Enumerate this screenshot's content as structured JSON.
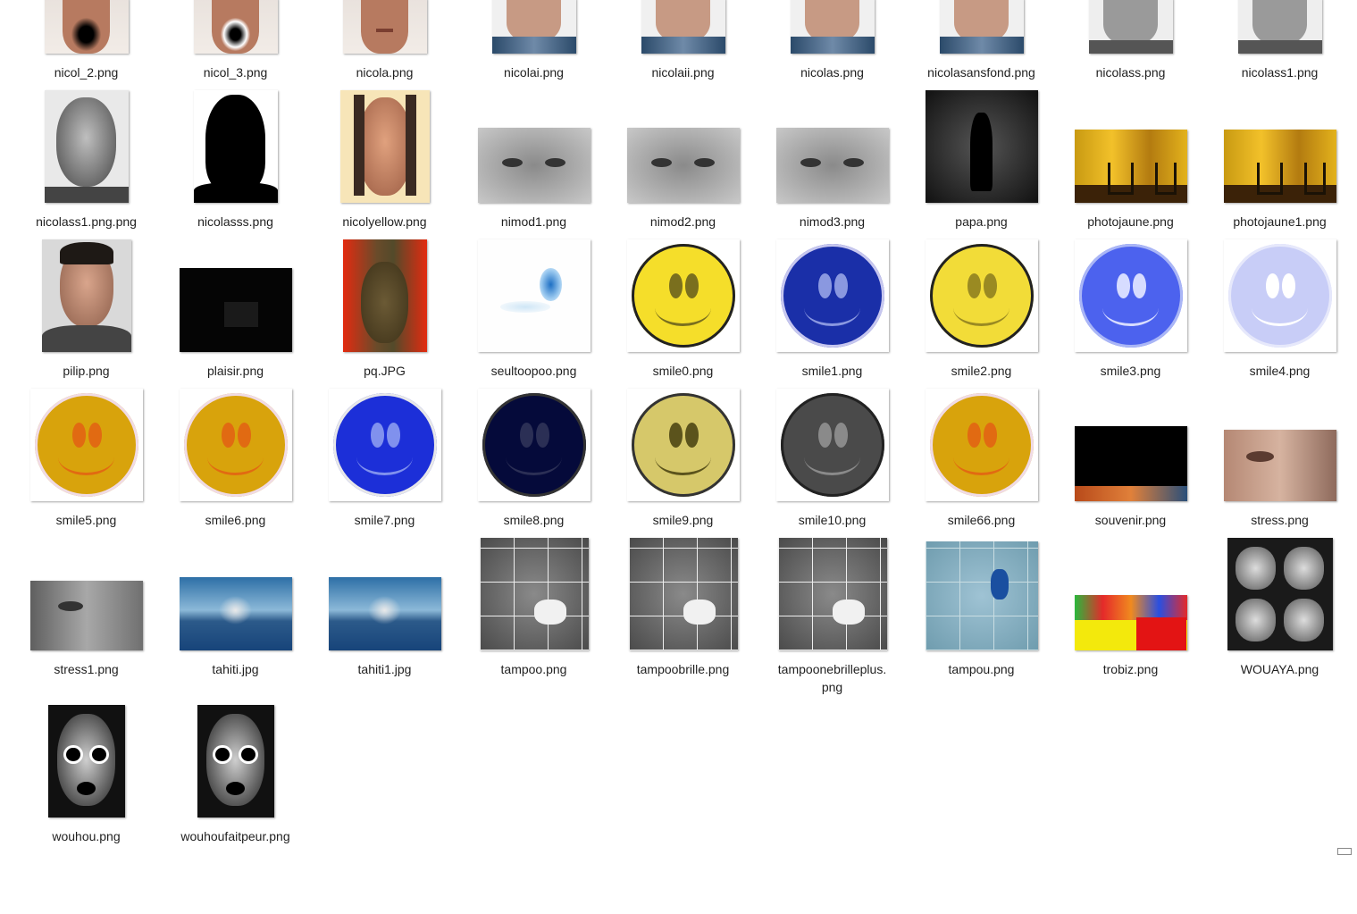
{
  "files": [
    {
      "name": "nicol_2.png",
      "kind": "face-mouth-black"
    },
    {
      "name": "nicol_3.png",
      "kind": "face-mouth-white"
    },
    {
      "name": "nicola.png",
      "kind": "face"
    },
    {
      "name": "nicolai.png",
      "kind": "face-man"
    },
    {
      "name": "nicolaii.png",
      "kind": "face-man"
    },
    {
      "name": "nicolas.png",
      "kind": "face-man"
    },
    {
      "name": "nicolasansfond.png",
      "kind": "face-man"
    },
    {
      "name": "nicolass.png",
      "kind": "face-gray"
    },
    {
      "name": "nicolass1.png",
      "kind": "face-gray"
    },
    {
      "name": "nicolass1.png.png",
      "kind": "portrait-gray"
    },
    {
      "name": "nicolasss.png",
      "kind": "silhouette"
    },
    {
      "name": "nicolyellow.png",
      "kind": "portrait-yellow"
    },
    {
      "name": "nimod1.png",
      "kind": "eyes-gray"
    },
    {
      "name": "nimod2.png",
      "kind": "eyes-gray"
    },
    {
      "name": "nimod3.png",
      "kind": "eyes-gray"
    },
    {
      "name": "papa.png",
      "kind": "dark-scene"
    },
    {
      "name": "photojaune.png",
      "kind": "yellow-room"
    },
    {
      "name": "photojaune1.png",
      "kind": "yellow-room"
    },
    {
      "name": "pilip.png",
      "kind": "portrait-man"
    },
    {
      "name": "plaisir.png",
      "kind": "black"
    },
    {
      "name": "pq.JPG",
      "kind": "psychedelic"
    },
    {
      "name": "seultoopoo.png",
      "kind": "blue-smudge"
    },
    {
      "name": "smile0.png",
      "kind": "smile-yellow"
    },
    {
      "name": "smile1.png",
      "kind": "smile-blue"
    },
    {
      "name": "smile2.png",
      "kind": "smile-yellow-inv"
    },
    {
      "name": "smile3.png",
      "kind": "smile-blue-light"
    },
    {
      "name": "smile4.png",
      "kind": "smile-pale"
    },
    {
      "name": "smile5.png",
      "kind": "smile-orange"
    },
    {
      "name": "smile6.png",
      "kind": "smile-orange"
    },
    {
      "name": "smile7.png",
      "kind": "smile-royal"
    },
    {
      "name": "smile8.png",
      "kind": "smile-navy"
    },
    {
      "name": "smile9.png",
      "kind": "smile-khaki"
    },
    {
      "name": "smile10.png",
      "kind": "smile-gray"
    },
    {
      "name": "smile66.png",
      "kind": "smile-orange"
    },
    {
      "name": "souvenir.png",
      "kind": "black-strip"
    },
    {
      "name": "stress.png",
      "kind": "stress"
    },
    {
      "name": "stress1.png",
      "kind": "stress-gray"
    },
    {
      "name": "tahiti.jpg",
      "kind": "tahiti"
    },
    {
      "name": "tahiti1.jpg",
      "kind": "tahiti"
    },
    {
      "name": "tampoo.png",
      "kind": "tile-bw"
    },
    {
      "name": "tampoobrille.png",
      "kind": "tile-bw"
    },
    {
      "name": "tampoonebrilleplus.png",
      "kind": "tile-bw"
    },
    {
      "name": "tampou.png",
      "kind": "tile-blue"
    },
    {
      "name": "trobiz.png",
      "kind": "trobiz"
    },
    {
      "name": "WOUAYA.png",
      "kind": "xray"
    },
    {
      "name": "wouhou.png",
      "kind": "skull"
    },
    {
      "name": "wouhoufaitpeur.png",
      "kind": "skull"
    }
  ],
  "labels": {
    "tampoonebrilleplus_line1": "tampoonebrilleplus.",
    "tampoonebrilleplus_line2": "png"
  }
}
